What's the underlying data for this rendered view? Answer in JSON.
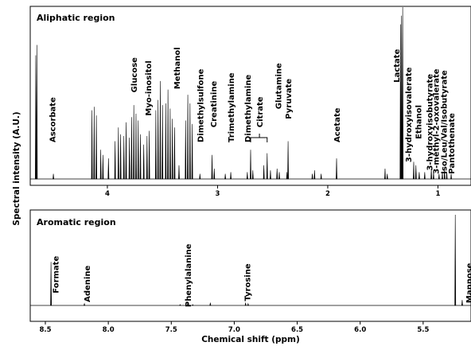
{
  "chart_data": {
    "type": "line",
    "ylabel": "Spectral intensity (A.U.)",
    "xlabel": "Chemical shift (ppm)",
    "panels": [
      {
        "title": "Aliphatic region",
        "xlim": [
          4.7,
          0.7
        ],
        "ylim": [
          0,
          100
        ],
        "xticks": [
          4,
          3,
          2,
          1
        ],
        "tick_labels": [
          "4",
          "3",
          "2",
          "1"
        ],
        "peaks": [
          {
            "x": 4.64,
            "h": 78
          },
          {
            "x": 4.65,
            "h": 72
          },
          {
            "x": 4.49,
            "h": 3
          },
          {
            "x": 4.14,
            "h": 40
          },
          {
            "x": 4.12,
            "h": 42
          },
          {
            "x": 4.1,
            "h": 37
          },
          {
            "x": 4.06,
            "h": 17
          },
          {
            "x": 4.04,
            "h": 14
          },
          {
            "x": 3.99,
            "h": 12
          },
          {
            "x": 3.93,
            "h": 22
          },
          {
            "x": 3.9,
            "h": 30
          },
          {
            "x": 3.88,
            "h": 26
          },
          {
            "x": 3.85,
            "h": 25
          },
          {
            "x": 3.83,
            "h": 33
          },
          {
            "x": 3.8,
            "h": 24
          },
          {
            "x": 3.78,
            "h": 36
          },
          {
            "x": 3.76,
            "h": 43
          },
          {
            "x": 3.74,
            "h": 38
          },
          {
            "x": 3.72,
            "h": 34
          },
          {
            "x": 3.7,
            "h": 26
          },
          {
            "x": 3.67,
            "h": 20
          },
          {
            "x": 3.64,
            "h": 25
          },
          {
            "x": 3.62,
            "h": 28
          },
          {
            "x": 3.56,
            "h": 40
          },
          {
            "x": 3.54,
            "h": 46
          },
          {
            "x": 3.52,
            "h": 57
          },
          {
            "x": 3.5,
            "h": 43
          },
          {
            "x": 3.47,
            "h": 44
          },
          {
            "x": 3.45,
            "h": 52
          },
          {
            "x": 3.43,
            "h": 41
          },
          {
            "x": 3.41,
            "h": 35
          },
          {
            "x": 3.39,
            "h": 30
          },
          {
            "x": 3.35,
            "h": 8
          },
          {
            "x": 3.29,
            "h": 34
          },
          {
            "x": 3.27,
            "h": 49
          },
          {
            "x": 3.25,
            "h": 44
          },
          {
            "x": 3.23,
            "h": 32
          },
          {
            "x": 3.16,
            "h": 3
          },
          {
            "x": 3.05,
            "h": 14
          },
          {
            "x": 3.03,
            "h": 6
          },
          {
            "x": 2.93,
            "h": 3
          },
          {
            "x": 2.88,
            "h": 4
          },
          {
            "x": 2.73,
            "h": 4
          },
          {
            "x": 2.7,
            "h": 17
          },
          {
            "x": 2.68,
            "h": 5
          },
          {
            "x": 2.58,
            "h": 8
          },
          {
            "x": 2.55,
            "h": 15
          },
          {
            "x": 2.52,
            "h": 5
          },
          {
            "x": 2.46,
            "h": 6
          },
          {
            "x": 2.44,
            "h": 4
          },
          {
            "x": 2.37,
            "h": 4
          },
          {
            "x": 2.36,
            "h": 22
          },
          {
            "x": 2.14,
            "h": 3
          },
          {
            "x": 2.12,
            "h": 5
          },
          {
            "x": 2.06,
            "h": 3
          },
          {
            "x": 1.92,
            "h": 12
          },
          {
            "x": 1.48,
            "h": 6
          },
          {
            "x": 1.46,
            "h": 3
          },
          {
            "x": 1.34,
            "h": 90
          },
          {
            "x": 1.32,
            "h": 100
          },
          {
            "x": 1.33,
            "h": 95
          },
          {
            "x": 1.22,
            "h": 10
          },
          {
            "x": 1.2,
            "h": 8
          },
          {
            "x": 1.17,
            "h": 4
          },
          {
            "x": 1.12,
            "h": 4
          },
          {
            "x": 1.06,
            "h": 6
          },
          {
            "x": 1.04,
            "h": 4
          },
          {
            "x": 0.99,
            "h": 3
          },
          {
            "x": 0.96,
            "h": 4
          },
          {
            "x": 0.94,
            "h": 6
          },
          {
            "x": 0.92,
            "h": 4
          },
          {
            "x": 0.88,
            "h": 3
          }
        ],
        "labels": [
          {
            "text": "Ascorbate",
            "x": 4.5,
            "pos": 0.22
          },
          {
            "text": "Glucose",
            "x": 3.76,
            "pos": 0.52
          },
          {
            "text": "Myo-inositol",
            "x": 3.63,
            "pos": 0.38
          },
          {
            "text": "Methanol",
            "x": 3.37,
            "pos": 0.54
          },
          {
            "text": "Dimethylsulfone",
            "x": 3.16,
            "pos": 0.22
          },
          {
            "text": "Creatinine",
            "x": 3.04,
            "pos": 0.31
          },
          {
            "text": "Trimethylamine",
            "x": 2.88,
            "pos": 0.22
          },
          {
            "text": "Dimethylamine",
            "x": 2.73,
            "pos": 0.22
          },
          {
            "text": "Citrate",
            "x": 2.62,
            "pos": 0.31
          },
          {
            "text": "Glutamine",
            "x": 2.45,
            "pos": 0.42
          },
          {
            "text": "Pyruvate",
            "x": 2.36,
            "pos": 0.36
          },
          {
            "text": "Acetate",
            "x": 1.92,
            "pos": 0.22
          },
          {
            "text": "Lactate",
            "x": 1.38,
            "pos": 0.58
          },
          {
            "text": "3-hydroxyisovalerate",
            "x": 1.27,
            "pos": 0.1
          },
          {
            "text": "Ethanol",
            "x": 1.18,
            "pos": 0.24
          },
          {
            "text": "3-hydroxyisobutyrate",
            "x": 1.08,
            "pos": 0.05
          },
          {
            "text": "3-methyl-2-oxovalerate",
            "x": 1.02,
            "pos": 0.03
          },
          {
            "text": "Iso/Leu/Val/Isobutyrate",
            "x": 0.95,
            "pos": 0.03
          },
          {
            "text": "Pantothenate",
            "x": 0.88,
            "pos": 0.03
          }
        ]
      },
      {
        "title": "Aromatic region",
        "xlim": [
          8.62,
          5.12
        ],
        "ylim": [
          0,
          100
        ],
        "xticks": [
          8.5,
          8.0,
          7.5,
          7.0,
          6.5,
          6.0,
          5.5
        ],
        "tick_labels": [
          "8.5",
          "8.0",
          "7.5",
          "7.0",
          "6.5",
          "6.0",
          "5.5"
        ],
        "peaks": [
          {
            "x": 8.455,
            "h": 48
          },
          {
            "x": 8.19,
            "h": 2
          },
          {
            "x": 7.43,
            "h": 1
          },
          {
            "x": 7.37,
            "h": 2
          },
          {
            "x": 7.33,
            "h": 1
          },
          {
            "x": 7.19,
            "h": 3
          },
          {
            "x": 6.91,
            "h": 3
          },
          {
            "x": 6.89,
            "h": 2
          },
          {
            "x": 5.245,
            "h": 100
          },
          {
            "x": 5.19,
            "h": 6
          }
        ],
        "labels": [
          {
            "text": "Formate",
            "x": 8.42,
            "pos": 0.22
          },
          {
            "text": "Adenine",
            "x": 8.17,
            "pos": 0.13
          },
          {
            "text": "Phenylalanine",
            "x": 7.37,
            "pos": 0.08
          },
          {
            "text": "Tyrosine",
            "x": 6.9,
            "pos": 0.14
          },
          {
            "text": "Mannose",
            "x": 5.14,
            "pos": 0.12
          }
        ]
      }
    ]
  }
}
